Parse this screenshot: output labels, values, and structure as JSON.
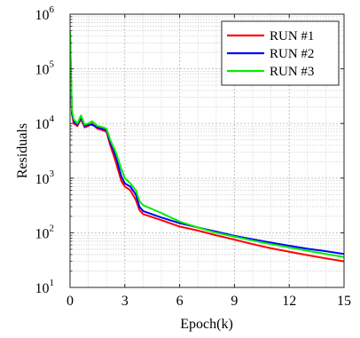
{
  "chart_data": {
    "type": "line",
    "title": "",
    "xlabel": "Epoch(k)",
    "ylabel": "Residuals",
    "xlim": [
      0,
      15
    ],
    "ylim": [
      10,
      1000000
    ],
    "yscale": "log",
    "grid": true,
    "legend_position": "top-right",
    "x_ticks": [
      "0",
      "3",
      "6",
      "9",
      "12",
      "15"
    ],
    "y_ticks": [
      {
        "base": "10",
        "exp": "1"
      },
      {
        "base": "10",
        "exp": "2"
      },
      {
        "base": "10",
        "exp": "3"
      },
      {
        "base": "10",
        "exp": "4"
      },
      {
        "base": "10",
        "exp": "5"
      },
      {
        "base": "10",
        "exp": "6"
      }
    ],
    "series": [
      {
        "name": "RUN #1",
        "color": "#ff0000",
        "x": [
          0,
          0.05,
          0.1,
          0.2,
          0.4,
          0.6,
          0.8,
          1.0,
          1.2,
          1.5,
          1.8,
          2.0,
          2.2,
          2.5,
          2.8,
          3.0,
          3.3,
          3.6,
          3.8,
          4.0,
          5.0,
          6.0,
          7.0,
          8.0,
          9.0,
          10.0,
          11.0,
          12.0,
          13.0,
          14.0,
          15.0
        ],
        "y": [
          400000,
          60000,
          15000,
          10000,
          9000,
          12000,
          8500,
          9000,
          10000,
          8000,
          7500,
          7000,
          4000,
          2000,
          900,
          700,
          600,
          400,
          260,
          220,
          170,
          130,
          110,
          90,
          75,
          62,
          52,
          45,
          39,
          34,
          30
        ]
      },
      {
        "name": "RUN #2",
        "color": "#0000ff",
        "x": [
          0,
          0.05,
          0.1,
          0.2,
          0.4,
          0.6,
          0.8,
          1.0,
          1.2,
          1.5,
          1.8,
          2.0,
          2.2,
          2.5,
          2.8,
          3.0,
          3.3,
          3.6,
          3.8,
          4.0,
          5.0,
          6.0,
          7.0,
          8.0,
          9.0,
          10.0,
          11.0,
          12.0,
          13.0,
          14.0,
          15.0
        ],
        "y": [
          450000,
          70000,
          16000,
          11000,
          9500,
          13000,
          9000,
          9500,
          9500,
          8500,
          8000,
          7500,
          4500,
          2500,
          1100,
          800,
          700,
          500,
          300,
          250,
          190,
          150,
          125,
          105,
          88,
          76,
          66,
          58,
          51,
          46,
          41
        ]
      },
      {
        "name": "RUN #3",
        "color": "#00ee00",
        "x": [
          0,
          0.05,
          0.1,
          0.2,
          0.4,
          0.6,
          0.8,
          1.0,
          1.2,
          1.5,
          1.8,
          2.0,
          2.2,
          2.5,
          2.8,
          3.0,
          3.3,
          3.6,
          3.8,
          4.0,
          5.0,
          6.0,
          7.0,
          8.0,
          9.0,
          10.0,
          11.0,
          12.0,
          13.0,
          14.0,
          15.0
        ],
        "y": [
          500000,
          80000,
          18000,
          12000,
          10000,
          14000,
          9500,
          10000,
          11000,
          9000,
          8500,
          8000,
          5000,
          3000,
          1500,
          1000,
          800,
          600,
          380,
          320,
          230,
          160,
          125,
          100,
          85,
          72,
          62,
          54,
          47,
          41,
          36
        ]
      }
    ]
  }
}
